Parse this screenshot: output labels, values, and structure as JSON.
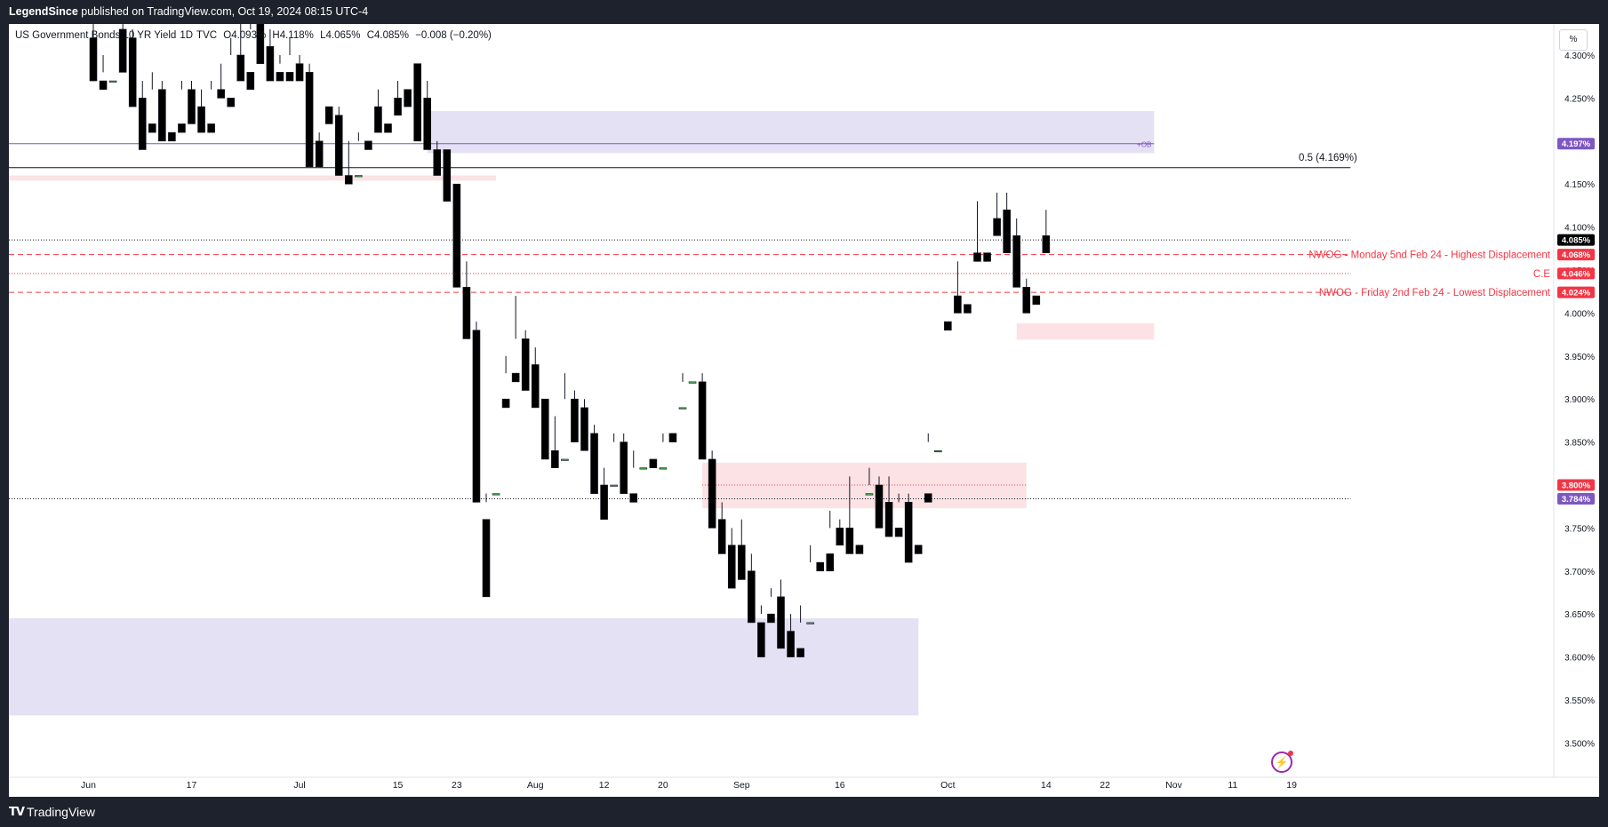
{
  "header": {
    "publisher": "LegendSince",
    "published_text": "published on TradingView.com, Oct 19, 2024 08:15 UTC-4"
  },
  "footer": {
    "brand": "TradingView",
    "logo_text": "TV"
  },
  "legend": {
    "symbol": "US Government Bonds 10 YR Yield",
    "interval": "1D",
    "exchange": "TVC",
    "open": "O4.093%",
    "high": "H4.118%",
    "low": "L4.065%",
    "close": "C4.085%",
    "change": "−0.008 (−0.20%)"
  },
  "scale_button": "%",
  "colors": {
    "up": "#4caf50",
    "down": "#000000",
    "ob_zone": "#e1dcf2",
    "pink_zone": "#fbdde1",
    "red_line": "#f23645",
    "purple_line": "#7e57c2"
  },
  "chart_data": {
    "type": "candlestick",
    "ylim": [
      3.47,
      4.33
    ],
    "y_ticks": [
      "4.300%",
      "4.250%",
      "4.200%",
      "4.150%",
      "4.100%",
      "4.050%",
      "4.000%",
      "3.950%",
      "3.900%",
      "3.850%",
      "3.800%",
      "3.750%",
      "3.700%",
      "3.650%",
      "3.600%",
      "3.550%",
      "3.500%"
    ],
    "y_tick_values": [
      4.3,
      4.25,
      4.2,
      4.15,
      4.1,
      4.05,
      4.0,
      3.95,
      3.9,
      3.85,
      3.8,
      3.75,
      3.7,
      3.65,
      3.6,
      3.55,
      3.5
    ],
    "x_ticks": [
      {
        "label": "Jun",
        "bar": -0.5
      },
      {
        "label": "17",
        "bar": 10
      },
      {
        "label": "Jul",
        "bar": 21
      },
      {
        "label": "15",
        "bar": 31
      },
      {
        "label": "23",
        "bar": 37
      },
      {
        "label": "Aug",
        "bar": 45
      },
      {
        "label": "12",
        "bar": 52
      },
      {
        "label": "20",
        "bar": 58
      },
      {
        "label": "Sep",
        "bar": 66
      },
      {
        "label": "16",
        "bar": 76
      },
      {
        "label": "Oct",
        "bar": 87
      },
      {
        "label": "14",
        "bar": 97
      },
      {
        "label": "22",
        "bar": 103
      },
      {
        "label": "Nov",
        "bar": 110
      },
      {
        "label": "11",
        "bar": 116
      },
      {
        "label": "19",
        "bar": 122
      }
    ],
    "candles": [
      [
        4.32,
        4.34,
        4.29,
        4.27
      ],
      [
        4.27,
        4.3,
        4.28,
        4.26
      ],
      [
        4.27,
        4.33,
        4.33,
        4.27
      ],
      [
        4.33,
        4.35,
        4.3,
        4.28
      ],
      [
        4.32,
        4.33,
        4.25,
        4.24
      ],
      [
        4.25,
        4.27,
        4.22,
        4.19
      ],
      [
        4.22,
        4.28,
        4.26,
        4.21
      ],
      [
        4.26,
        4.27,
        4.21,
        4.2
      ],
      [
        4.21,
        4.22,
        4.22,
        4.2
      ],
      [
        4.22,
        4.27,
        4.26,
        4.21
      ],
      [
        4.26,
        4.27,
        4.25,
        4.22
      ],
      [
        4.24,
        4.26,
        4.22,
        4.21
      ],
      [
        4.22,
        4.27,
        4.26,
        4.21
      ],
      [
        4.26,
        4.29,
        4.26,
        4.25
      ],
      [
        4.25,
        4.32,
        4.3,
        4.24
      ],
      [
        4.3,
        4.34,
        4.28,
        4.27
      ],
      [
        4.28,
        4.33,
        4.34,
        4.26
      ],
      [
        4.34,
        4.36,
        4.31,
        4.29
      ],
      [
        4.31,
        4.33,
        4.28,
        4.27
      ],
      [
        4.28,
        4.3,
        4.29,
        4.27
      ],
      [
        4.28,
        4.32,
        4.3,
        4.27
      ],
      [
        4.29,
        4.3,
        4.28,
        4.27
      ],
      [
        4.28,
        4.29,
        4.2,
        4.17
      ],
      [
        4.2,
        4.21,
        4.18,
        4.17
      ],
      [
        4.24,
        4.24,
        4.24,
        4.22
      ],
      [
        4.23,
        4.24,
        4.16,
        4.16
      ],
      [
        4.16,
        4.2,
        4.16,
        4.15
      ],
      [
        4.16,
        4.21,
        4.2,
        4.16
      ],
      [
        4.2,
        4.24,
        4.24,
        4.19
      ],
      [
        4.24,
        4.26,
        4.21,
        4.21
      ],
      [
        4.22,
        4.26,
        4.26,
        4.21
      ],
      [
        4.25,
        4.27,
        4.25,
        4.23
      ],
      [
        4.26,
        4.29,
        4.29,
        4.24
      ],
      [
        4.29,
        4.29,
        4.25,
        4.2
      ],
      [
        4.25,
        4.27,
        4.19,
        4.19
      ],
      [
        4.19,
        4.2,
        4.18,
        4.16
      ],
      [
        4.19,
        4.19,
        4.15,
        4.13
      ],
      [
        4.15,
        4.15,
        4.03,
        4.03
      ],
      [
        4.03,
        4.06,
        3.98,
        3.97
      ],
      [
        3.98,
        3.99,
        3.79,
        3.78
      ],
      [
        3.76,
        3.78,
        3.79,
        3.67
      ],
      [
        3.79,
        3.9,
        3.9,
        3.79
      ],
      [
        3.9,
        3.95,
        3.93,
        3.89
      ],
      [
        3.93,
        4.02,
        3.97,
        3.92
      ],
      [
        3.97,
        3.98,
        3.92,
        3.91
      ],
      [
        3.94,
        3.96,
        3.9,
        3.89
      ],
      [
        3.9,
        3.9,
        3.85,
        3.83
      ],
      [
        3.84,
        3.88,
        3.83,
        3.82
      ],
      [
        3.83,
        3.93,
        3.9,
        3.83
      ],
      [
        3.9,
        3.91,
        3.87,
        3.85
      ],
      [
        3.89,
        3.9,
        3.86,
        3.84
      ],
      [
        3.86,
        3.87,
        3.8,
        3.79
      ],
      [
        3.8,
        3.82,
        3.8,
        3.76
      ],
      [
        3.8,
        3.86,
        3.85,
        3.8
      ],
      [
        3.85,
        3.86,
        3.8,
        3.79
      ],
      [
        3.79,
        3.84,
        3.82,
        3.78
      ],
      [
        3.82,
        3.83,
        3.83,
        3.82
      ],
      [
        3.83,
        3.84,
        3.84,
        3.82
      ],
      [
        3.82,
        3.86,
        3.85,
        3.82
      ],
      [
        3.86,
        3.89,
        3.89,
        3.85
      ],
      [
        3.89,
        3.93,
        3.92,
        3.89
      ],
      [
        3.92,
        3.92,
        3.92,
        3.92
      ],
      [
        3.92,
        3.93,
        3.83,
        3.83
      ],
      [
        3.83,
        3.84,
        3.76,
        3.75
      ],
      [
        3.76,
        3.78,
        3.73,
        3.72
      ],
      [
        3.73,
        3.75,
        3.72,
        3.68
      ],
      [
        3.73,
        3.76,
        3.71,
        3.69
      ],
      [
        3.7,
        3.72,
        3.64,
        3.64
      ],
      [
        3.64,
        3.66,
        3.65,
        3.6
      ],
      [
        3.65,
        3.68,
        3.67,
        3.64
      ],
      [
        3.67,
        3.69,
        3.64,
        3.61
      ],
      [
        3.63,
        3.65,
        3.61,
        3.6
      ],
      [
        3.61,
        3.66,
        3.64,
        3.6
      ],
      [
        3.64,
        3.73,
        3.71,
        3.64
      ],
      [
        3.71,
        3.72,
        3.72,
        3.7
      ],
      [
        3.72,
        3.77,
        3.75,
        3.7
      ],
      [
        3.75,
        3.76,
        3.75,
        3.73
      ],
      [
        3.75,
        3.81,
        3.73,
        3.72
      ],
      [
        3.73,
        3.79,
        3.79,
        3.72
      ],
      [
        3.79,
        3.82,
        3.8,
        3.79
      ],
      [
        3.8,
        3.81,
        3.76,
        3.75
      ],
      [
        3.78,
        3.81,
        3.75,
        3.74
      ],
      [
        3.75,
        3.79,
        3.78,
        3.74
      ],
      [
        3.78,
        3.79,
        3.73,
        3.71
      ],
      [
        3.73,
        3.78,
        3.78,
        3.72
      ],
      [
        3.79,
        3.86,
        3.85,
        3.78
      ],
      [
        3.84,
        3.97,
        3.97,
        3.84
      ],
      [
        3.99,
        4.03,
        4.03,
        3.98
      ],
      [
        4.02,
        4.06,
        4.0,
        4.0
      ],
      [
        4.01,
        4.08,
        4.08,
        4.0
      ],
      [
        4.07,
        4.13,
        4.07,
        4.06
      ],
      [
        4.07,
        4.11,
        4.11,
        4.06
      ],
      [
        4.11,
        4.14,
        4.1,
        4.09
      ],
      [
        4.12,
        4.14,
        4.09,
        4.07
      ],
      [
        4.09,
        4.11,
        4.04,
        4.03
      ],
      [
        4.03,
        4.04,
        4.01,
        4.0
      ],
      [
        4.02,
        4.09,
        4.09,
        4.01
      ],
      [
        4.09,
        4.12,
        4.08,
        4.07
      ]
    ],
    "zones": [
      {
        "kind": "ob",
        "from_bar": 34,
        "to_bar": 108,
        "top": 4.235,
        "bottom": 4.186
      },
      {
        "kind": "pink",
        "from_bar": -1,
        "to_bar": 41,
        "top": 4.16,
        "bottom": 4.154
      },
      {
        "kind": "pink",
        "from_bar": 62,
        "to_bar": 95,
        "top": 3.826,
        "bottom": 3.773
      },
      {
        "kind": "pink",
        "from_bar": 94,
        "to_bar": 108,
        "top": 3.988,
        "bottom": 3.969
      },
      {
        "kind": "ob",
        "from_bar": -1,
        "to_bar": 84,
        "top": 3.645,
        "bottom": 3.532
      }
    ],
    "lines": [
      {
        "price": 4.197,
        "style": "solid",
        "color": "purple",
        "from_bar": -1,
        "to_bar": 108,
        "label": "+OB"
      },
      {
        "price": 4.169,
        "style": "solid",
        "color": "black",
        "from_bar": -1,
        "to_bar": 128,
        "label": "0.5 (4.169%)"
      },
      {
        "price": 4.085,
        "style": "dotted",
        "color": "black",
        "from_bar": -1,
        "to_bar": 128,
        "label": ""
      },
      {
        "price": 4.068,
        "style": "dashed",
        "color": "red",
        "from_bar": -1,
        "to_bar": 128,
        "label": "NWOG - Monday 5nd Feb 24 - Highest Displacement"
      },
      {
        "price": 4.046,
        "style": "dotted",
        "color": "red",
        "from_bar": -1,
        "to_bar": 128,
        "label": "C.E"
      },
      {
        "price": 4.024,
        "style": "dashed",
        "color": "red",
        "from_bar": -1,
        "to_bar": 128,
        "label": "NWOG - Friday 2nd Feb 24 - Lowest Displacement"
      },
      {
        "price": 3.784,
        "style": "dotted",
        "color": "black",
        "from_bar": -1,
        "to_bar": 128,
        "label": ""
      },
      {
        "price": 3.8,
        "style": "dotted",
        "color": "red",
        "from_bar": 62,
        "to_bar": 95,
        "label": ""
      }
    ],
    "price_badges": [
      {
        "text": "4.197%",
        "price": 4.197,
        "color": "#7e57c2"
      },
      {
        "text": "4.085%",
        "price": 4.085,
        "color": "#000000"
      },
      {
        "text": "4.068%",
        "price": 4.068,
        "color": "#f23645"
      },
      {
        "text": "4.046%",
        "price": 4.046,
        "color": "#f23645"
      },
      {
        "text": "4.024%",
        "price": 4.024,
        "color": "#f23645"
      },
      {
        "text": "3.800%",
        "price": 3.8,
        "color": "#f23645"
      },
      {
        "text": "3.784%",
        "price": 3.784,
        "color": "#7e57c2"
      }
    ]
  }
}
